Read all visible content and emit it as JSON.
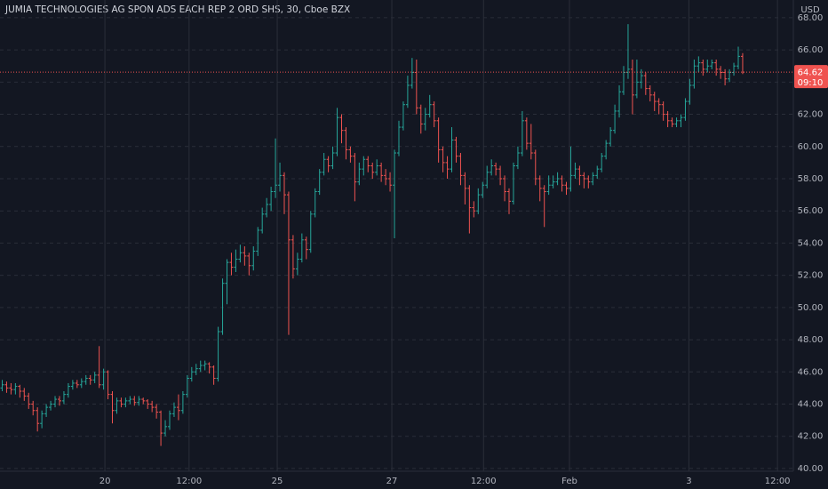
{
  "chart_data": {
    "type": "ohlc",
    "title": "JUMIA TECHNOLOGIES AG SPON ADS EACH REP 2 ORD SHS, 30, Cboe BZX",
    "currency": "USD",
    "countdown": "09:10",
    "up_color": "#26a69a",
    "down_color": "#ef5350",
    "ylim": [
      39.83,
      69.1
    ],
    "yticks": [
      {
        "value": 40,
        "label": "40.00"
      },
      {
        "value": 42,
        "label": "42.00"
      },
      {
        "value": 44,
        "label": "44.00"
      },
      {
        "value": 46,
        "label": "46.00"
      },
      {
        "value": 48,
        "label": "48.00"
      },
      {
        "value": 50,
        "label": "50.00"
      },
      {
        "value": 52,
        "label": "52.00"
      },
      {
        "value": 54,
        "label": "54.00"
      },
      {
        "value": 56,
        "label": "56.00"
      },
      {
        "value": 58,
        "label": "58.00"
      },
      {
        "value": 60,
        "label": "60.00"
      },
      {
        "value": 62,
        "label": "62.00"
      },
      {
        "value": 64,
        "label": "64.00"
      },
      {
        "value": 66,
        "label": "66.00"
      },
      {
        "value": 68,
        "label": "68.00"
      }
    ],
    "xlim": [
      -0.4,
      179.6
    ],
    "xticks": [
      {
        "value": 23.4,
        "label": "20"
      },
      {
        "value": 42.5,
        "label": "12:00"
      },
      {
        "value": 62.5,
        "label": "25"
      },
      {
        "value": 88.5,
        "label": "27"
      },
      {
        "value": 109.3,
        "label": "12:00"
      },
      {
        "value": 128.8,
        "label": "Feb"
      },
      {
        "value": 155.9,
        "label": "3"
      },
      {
        "value": 176,
        "label": "12:00"
      }
    ],
    "grid": true,
    "ohlc": [
      [
        45.0,
        45.5,
        44.8,
        45.2
      ],
      [
        45.2,
        45.4,
        44.7,
        45.0
      ],
      [
        45.0,
        45.3,
        44.6,
        44.9
      ],
      [
        44.9,
        45.3,
        44.6,
        45.1
      ],
      [
        45.1,
        45.2,
        44.4,
        44.8
      ],
      [
        44.8,
        45.0,
        44.2,
        44.5
      ],
      [
        44.5,
        44.7,
        43.7,
        44.0
      ],
      [
        44.0,
        44.2,
        43.3,
        43.6
      ],
      [
        43.6,
        43.8,
        42.3,
        42.8
      ],
      [
        42.8,
        43.6,
        42.5,
        43.4
      ],
      [
        43.4,
        44.0,
        43.2,
        43.8
      ],
      [
        43.8,
        44.2,
        43.6,
        44.0
      ],
      [
        44.0,
        44.5,
        43.8,
        44.3
      ],
      [
        44.3,
        44.5,
        43.9,
        44.2
      ],
      [
        44.2,
        44.8,
        44.0,
        44.6
      ],
      [
        44.6,
        45.3,
        44.4,
        45.1
      ],
      [
        45.1,
        45.5,
        44.9,
        45.3
      ],
      [
        45.3,
        45.5,
        45.0,
        45.2
      ],
      [
        45.2,
        45.6,
        45.0,
        45.4
      ],
      [
        45.4,
        45.8,
        45.2,
        45.6
      ],
      [
        45.6,
        45.8,
        45.2,
        45.5
      ],
      [
        45.5,
        46.0,
        45.3,
        45.8
      ],
      [
        45.8,
        47.6,
        45.0,
        45.2
      ],
      [
        45.2,
        46.2,
        44.9,
        46.0
      ],
      [
        46.0,
        46.1,
        44.3,
        44.6
      ],
      [
        44.6,
        44.8,
        42.8,
        43.6
      ],
      [
        43.6,
        44.4,
        43.4,
        44.2
      ],
      [
        44.2,
        44.4,
        43.8,
        44.0
      ],
      [
        44.0,
        44.4,
        43.8,
        44.2
      ],
      [
        44.2,
        44.5,
        44.0,
        44.3
      ],
      [
        44.3,
        44.5,
        43.9,
        44.1
      ],
      [
        44.1,
        44.5,
        43.9,
        44.3
      ],
      [
        44.3,
        44.4,
        44.0,
        44.2
      ],
      [
        44.2,
        44.3,
        43.7,
        44.0
      ],
      [
        44.0,
        44.2,
        43.5,
        43.8
      ],
      [
        43.8,
        44.0,
        43.1,
        43.5
      ],
      [
        43.5,
        43.6,
        41.4,
        42.2
      ],
      [
        42.2,
        43.0,
        42.0,
        42.6
      ],
      [
        42.6,
        43.6,
        42.4,
        43.4
      ],
      [
        43.4,
        44.1,
        43.2,
        43.8
      ],
      [
        43.8,
        44.6,
        43.0,
        43.6
      ],
      [
        43.6,
        44.8,
        43.4,
        44.6
      ],
      [
        44.6,
        45.8,
        44.4,
        45.6
      ],
      [
        45.6,
        46.3,
        45.4,
        46.0
      ],
      [
        46.0,
        46.5,
        45.8,
        46.2
      ],
      [
        46.2,
        46.7,
        46.0,
        46.4
      ],
      [
        46.4,
        46.7,
        46.1,
        46.5
      ],
      [
        46.5,
        46.6,
        45.9,
        46.3
      ],
      [
        46.3,
        46.4,
        45.2,
        45.6
      ],
      [
        45.6,
        48.8,
        45.4,
        48.5
      ],
      [
        48.5,
        51.8,
        48.3,
        51.5
      ],
      [
        51.5,
        53.0,
        50.2,
        52.8
      ],
      [
        52.8,
        53.4,
        52.0,
        52.5
      ],
      [
        52.5,
        53.6,
        52.2,
        53.0
      ],
      [
        53.0,
        53.9,
        52.8,
        53.4
      ],
      [
        53.4,
        53.8,
        52.6,
        53.2
      ],
      [
        53.2,
        53.4,
        52.0,
        52.6
      ],
      [
        52.6,
        53.8,
        52.3,
        53.5
      ],
      [
        53.5,
        55.0,
        53.2,
        54.8
      ],
      [
        54.8,
        56.2,
        54.6,
        55.8
      ],
      [
        55.8,
        56.8,
        55.6,
        56.4
      ],
      [
        56.4,
        57.5,
        56.0,
        57.2
      ],
      [
        57.2,
        60.5,
        56.8,
        57.6
      ],
      [
        57.6,
        59.0,
        57.2,
        58.2
      ],
      [
        58.2,
        58.4,
        55.8,
        57.0
      ],
      [
        57.0,
        57.2,
        48.3,
        54.2
      ],
      [
        54.2,
        54.5,
        51.8,
        52.4
      ],
      [
        52.4,
        53.4,
        52.0,
        53.0
      ],
      [
        53.0,
        54.6,
        52.8,
        54.2
      ],
      [
        54.2,
        54.4,
        53.0,
        53.6
      ],
      [
        53.6,
        56.0,
        53.4,
        55.8
      ],
      [
        55.8,
        57.4,
        55.6,
        57.2
      ],
      [
        57.2,
        58.6,
        57.0,
        58.4
      ],
      [
        58.4,
        59.6,
        58.2,
        59.2
      ],
      [
        59.2,
        59.4,
        58.4,
        58.8
      ],
      [
        58.8,
        60.0,
        58.6,
        59.6
      ],
      [
        59.6,
        62.4,
        59.4,
        61.8
      ],
      [
        61.8,
        62.0,
        60.2,
        61.0
      ],
      [
        61.0,
        61.2,
        59.2,
        59.8
      ],
      [
        59.8,
        60.0,
        59.0,
        59.4
      ],
      [
        59.4,
        59.6,
        56.6,
        57.8
      ],
      [
        57.8,
        59.0,
        57.6,
        58.6
      ],
      [
        58.6,
        59.4,
        58.2,
        59.2
      ],
      [
        59.2,
        59.4,
        58.4,
        58.8
      ],
      [
        58.8,
        59.0,
        58.0,
        58.4
      ],
      [
        58.4,
        59.2,
        58.2,
        58.8
      ],
      [
        58.8,
        59.0,
        57.8,
        58.2
      ],
      [
        58.2,
        58.6,
        57.6,
        58.0
      ],
      [
        58.0,
        58.4,
        57.2,
        57.6
      ],
      [
        57.6,
        59.8,
        54.3,
        59.6
      ],
      [
        59.6,
        61.6,
        59.4,
        61.2
      ],
      [
        61.2,
        62.8,
        61.0,
        62.6
      ],
      [
        62.6,
        64.4,
        62.4,
        63.8
      ],
      [
        63.8,
        65.5,
        63.6,
        64.6
      ],
      [
        64.6,
        65.4,
        62.0,
        62.4
      ],
      [
        62.4,
        62.6,
        60.8,
        61.4
      ],
      [
        61.4,
        62.4,
        61.0,
        62.0
      ],
      [
        62.0,
        63.2,
        61.8,
        62.6
      ],
      [
        62.6,
        62.8,
        61.2,
        61.6
      ],
      [
        61.6,
        61.8,
        59.0,
        59.8
      ],
      [
        59.8,
        60.0,
        58.4,
        59.0
      ],
      [
        59.0,
        59.4,
        58.0,
        58.6
      ],
      [
        58.6,
        61.2,
        58.4,
        60.4
      ],
      [
        60.4,
        60.6,
        59.0,
        59.4
      ],
      [
        59.4,
        59.6,
        57.6,
        58.2
      ],
      [
        58.2,
        58.4,
        56.4,
        57.4
      ],
      [
        57.4,
        57.6,
        54.6,
        56.2
      ],
      [
        56.2,
        56.6,
        55.6,
        56.0
      ],
      [
        56.0,
        57.4,
        55.8,
        57.0
      ],
      [
        57.0,
        57.8,
        56.8,
        57.6
      ],
      [
        57.6,
        58.8,
        57.4,
        58.4
      ],
      [
        58.4,
        59.2,
        58.2,
        58.8
      ],
      [
        58.8,
        59.0,
        58.2,
        58.6
      ],
      [
        58.6,
        58.8,
        57.6,
        58.0
      ],
      [
        58.0,
        58.2,
        56.6,
        57.2
      ],
      [
        57.2,
        57.4,
        55.8,
        56.6
      ],
      [
        56.6,
        59.0,
        56.4,
        58.8
      ],
      [
        58.8,
        60.0,
        58.6,
        59.6
      ],
      [
        59.6,
        62.2,
        59.4,
        61.6
      ],
      [
        61.6,
        61.8,
        59.8,
        60.2
      ],
      [
        60.2,
        61.4,
        59.2,
        59.6
      ],
      [
        59.6,
        59.8,
        57.6,
        58.0
      ],
      [
        58.0,
        58.2,
        56.6,
        57.4
      ],
      [
        57.4,
        57.6,
        55.0,
        57.2
      ],
      [
        57.2,
        58.2,
        57.0,
        57.6
      ],
      [
        57.6,
        58.2,
        57.4,
        57.8
      ],
      [
        57.8,
        58.4,
        57.6,
        58.0
      ],
      [
        58.0,
        58.2,
        57.2,
        57.6
      ],
      [
        57.6,
        57.8,
        57.0,
        57.4
      ],
      [
        57.4,
        60.0,
        57.2,
        58.2
      ],
      [
        58.2,
        59.0,
        58.0,
        58.6
      ],
      [
        58.6,
        58.8,
        57.6,
        58.2
      ],
      [
        58.2,
        58.4,
        57.4,
        58.0
      ],
      [
        58.0,
        58.2,
        57.4,
        57.8
      ],
      [
        57.8,
        58.4,
        57.6,
        58.2
      ],
      [
        58.2,
        58.8,
        58.0,
        58.6
      ],
      [
        58.6,
        59.6,
        58.4,
        59.4
      ],
      [
        59.4,
        60.4,
        59.2,
        60.2
      ],
      [
        60.2,
        61.2,
        60.0,
        61.0
      ],
      [
        61.0,
        62.6,
        60.8,
        62.2
      ],
      [
        62.2,
        63.8,
        61.8,
        63.4
      ],
      [
        63.4,
        65.0,
        63.2,
        64.6
      ],
      [
        64.6,
        67.6,
        64.2,
        64.8
      ],
      [
        64.8,
        65.4,
        62.0,
        63.2
      ],
      [
        63.2,
        65.4,
        63.0,
        64.0
      ],
      [
        64.0,
        64.8,
        63.6,
        64.4
      ],
      [
        64.4,
        64.6,
        63.2,
        63.6
      ],
      [
        63.6,
        63.8,
        62.8,
        63.2
      ],
      [
        63.2,
        63.4,
        62.2,
        62.8
      ],
      [
        62.8,
        63.0,
        62.0,
        62.6
      ],
      [
        62.6,
        62.8,
        61.6,
        62.0
      ],
      [
        62.0,
        62.2,
        61.2,
        61.6
      ],
      [
        61.6,
        61.8,
        61.2,
        61.4
      ],
      [
        61.4,
        61.8,
        61.2,
        61.6
      ],
      [
        61.6,
        62.0,
        61.2,
        61.8
      ],
      [
        61.8,
        63.0,
        61.6,
        62.8
      ],
      [
        62.8,
        64.2,
        62.6,
        63.8
      ],
      [
        63.8,
        65.4,
        63.6,
        65.0
      ],
      [
        65.0,
        65.6,
        64.6,
        65.2
      ],
      [
        65.2,
        65.4,
        64.4,
        64.8
      ],
      [
        64.8,
        65.4,
        64.6,
        65.0
      ],
      [
        65.0,
        65.4,
        64.8,
        65.2
      ],
      [
        65.2,
        65.4,
        64.4,
        64.8
      ],
      [
        64.8,
        65.0,
        64.2,
        64.6
      ],
      [
        64.6,
        64.8,
        63.8,
        64.2
      ],
      [
        64.2,
        64.8,
        64.0,
        64.6
      ],
      [
        64.6,
        65.2,
        64.4,
        65.0
      ],
      [
        65.0,
        66.2,
        64.8,
        65.6
      ],
      [
        65.6,
        65.8,
        64.5,
        64.62
      ]
    ]
  }
}
